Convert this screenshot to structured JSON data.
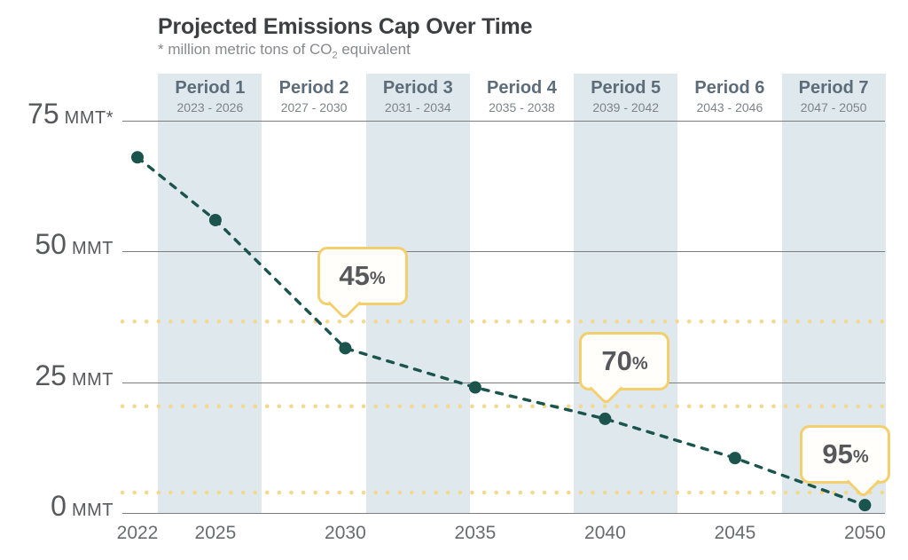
{
  "header": {
    "title": "Projected Emissions Cap Over Time",
    "subtitle_prefix": "* million metric tons of CO",
    "subtitle_sub": "2",
    "subtitle_suffix": " equivalent"
  },
  "colors": {
    "line_teal": "#1a544d",
    "band_blue": "#dee8ed",
    "target_gold": "#f3d88e",
    "callout_border_gold": "#f3cf6e",
    "callout_bg": "#fffefa",
    "gridline_gray": "#7c7d7f",
    "title_gray": "#3d3e40",
    "axis_text_gray": "#57585b"
  },
  "chart_data": {
    "type": "line",
    "title": "Projected Emissions Cap Over Time",
    "unit_note": "* million metric tons of CO2 equivalent",
    "xlabel": "",
    "ylabel": "MMT (million metric tons CO2e)",
    "x": [
      2022,
      2025,
      2030,
      2035,
      2040,
      2045,
      2050
    ],
    "xticks": [
      "2022",
      "2025",
      "2030",
      "2035",
      "2040",
      "2045",
      "2050"
    ],
    "series": [
      {
        "name": "Projected emissions cap (MMT)",
        "values": [
          68,
          56,
          31.5,
          24,
          18,
          10.5,
          1.5
        ]
      }
    ],
    "line_style": "dashed",
    "marker": "circle",
    "grid": true,
    "legend": false,
    "ylim": [
      0,
      75
    ],
    "yticks": [
      {
        "value": 0,
        "big": "0",
        "small": " MMT"
      },
      {
        "value": 25,
        "big": "25",
        "small": " MMT"
      },
      {
        "value": 50,
        "big": "50",
        "small": " MMT"
      },
      {
        "value": 75,
        "big": "75",
        "small": " MMT*"
      }
    ],
    "periods": [
      {
        "label": "Period 1",
        "years": "2023 - 2026",
        "start": 2023,
        "end": 2026,
        "shaded": true
      },
      {
        "label": "Period 2",
        "years": "2027 - 2030",
        "start": 2027,
        "end": 2030,
        "shaded": false
      },
      {
        "label": "Period 3",
        "years": "2031 - 2034",
        "start": 2031,
        "end": 2034,
        "shaded": true
      },
      {
        "label": "Period 4",
        "years": "2035 - 2038",
        "start": 2035,
        "end": 2038,
        "shaded": false
      },
      {
        "label": "Period 5",
        "years": "2039 - 2042",
        "start": 2039,
        "end": 2042,
        "shaded": true
      },
      {
        "label": "Period 6",
        "years": "2043 - 2046",
        "start": 2043,
        "end": 2046,
        "shaded": false
      },
      {
        "label": "Period 7",
        "years": "2047 - 2050",
        "start": 2047,
        "end": 2050,
        "shaded": true
      }
    ],
    "reduction_target_lines": [
      {
        "label": "45%",
        "value_mmt": 36.6
      },
      {
        "label": "70%",
        "value_mmt": 20.4
      },
      {
        "label": "95%",
        "value_mmt": 3.9
      }
    ],
    "callouts": [
      {
        "big": "45",
        "small": "%",
        "tip_year": 2029.8,
        "tip_value": 37.3,
        "tail": "left"
      },
      {
        "big": "70",
        "small": "%",
        "tip_year": 2039.9,
        "tip_value": 21.0,
        "tail": "left"
      },
      {
        "big": "95",
        "small": "%",
        "tip_year": 2049.9,
        "tip_value": 3.2,
        "tail": "right"
      }
    ]
  }
}
